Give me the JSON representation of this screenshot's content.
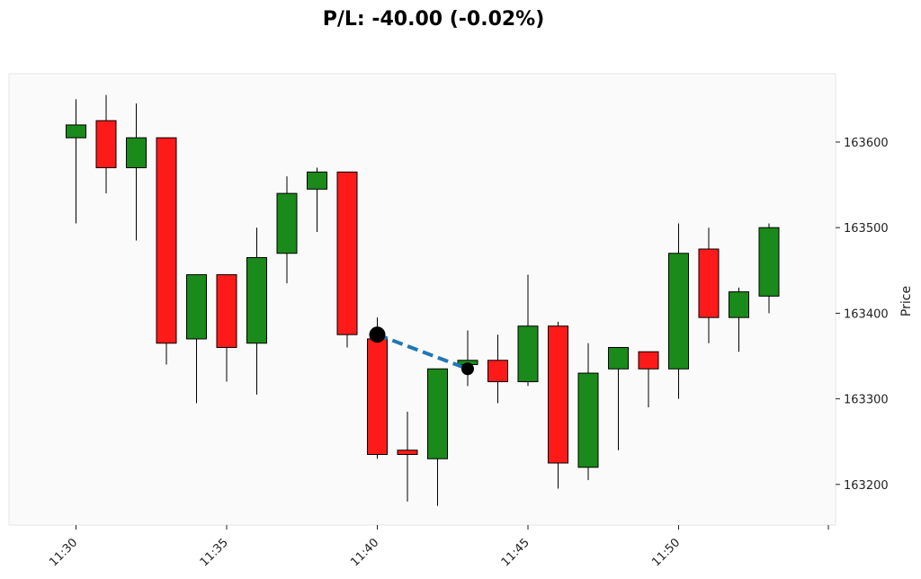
{
  "chart_data": {
    "type": "candlestick",
    "title": "P/L: -40.00 (-0.02%)",
    "xlabel": "",
    "ylabel": "Price",
    "x_ticks": [
      "11:30",
      "11:35",
      "11:40",
      "11:45",
      "11:50"
    ],
    "y_ticks": [
      163200,
      163300,
      163400,
      163500,
      163600
    ],
    "ylim": [
      163150,
      163680
    ],
    "grid": false,
    "colors": {
      "up": "#1a8a1a",
      "down": "#ff1a1a",
      "trade_line": "#1f77b4",
      "marker": "#000000",
      "background": "#fafafa"
    },
    "candles": [
      {
        "time": "11:30",
        "open": 163605,
        "high": 163650,
        "low": 163505,
        "close": 163620
      },
      {
        "time": "11:31",
        "open": 163625,
        "high": 163655,
        "low": 163540,
        "close": 163570
      },
      {
        "time": "11:32",
        "open": 163570,
        "high": 163645,
        "low": 163485,
        "close": 163605
      },
      {
        "time": "11:33",
        "open": 163605,
        "high": 163605,
        "low": 163340,
        "close": 163365
      },
      {
        "time": "11:34",
        "open": 163370,
        "high": 163445,
        "low": 163295,
        "close": 163445
      },
      {
        "time": "11:35",
        "open": 163445,
        "high": 163445,
        "low": 163320,
        "close": 163360
      },
      {
        "time": "11:36",
        "open": 163365,
        "high": 163500,
        "low": 163305,
        "close": 163465
      },
      {
        "time": "11:37",
        "open": 163470,
        "high": 163560,
        "low": 163435,
        "close": 163540
      },
      {
        "time": "11:38",
        "open": 163545,
        "high": 163570,
        "low": 163495,
        "close": 163565
      },
      {
        "time": "11:39",
        "open": 163565,
        "high": 163565,
        "low": 163360,
        "close": 163375
      },
      {
        "time": "11:40",
        "open": 163370,
        "high": 163395,
        "low": 163230,
        "close": 163235
      },
      {
        "time": "11:41",
        "open": 163240,
        "high": 163285,
        "low": 163180,
        "close": 163235
      },
      {
        "time": "11:42",
        "open": 163230,
        "high": 163335,
        "low": 163175,
        "close": 163335
      },
      {
        "time": "11:43",
        "open": 163340,
        "high": 163380,
        "low": 163315,
        "close": 163345
      },
      {
        "time": "11:44",
        "open": 163345,
        "high": 163375,
        "low": 163295,
        "close": 163320
      },
      {
        "time": "11:45",
        "open": 163320,
        "high": 163445,
        "low": 163315,
        "close": 163385
      },
      {
        "time": "11:46",
        "open": 163385,
        "high": 163390,
        "low": 163195,
        "close": 163225
      },
      {
        "time": "11:47",
        "open": 163220,
        "high": 163365,
        "low": 163205,
        "close": 163330
      },
      {
        "time": "11:48",
        "open": 163335,
        "high": 163360,
        "low": 163240,
        "close": 163360
      },
      {
        "time": "11:49",
        "open": 163355,
        "high": 163355,
        "low": 163290,
        "close": 163335
      },
      {
        "time": "11:50",
        "open": 163335,
        "high": 163505,
        "low": 163300,
        "close": 163470
      },
      {
        "time": "11:51",
        "open": 163475,
        "high": 163500,
        "low": 163365,
        "close": 163395
      },
      {
        "time": "11:52",
        "open": 163395,
        "high": 163430,
        "low": 163355,
        "close": 163425
      },
      {
        "time": "11:53",
        "open": 163420,
        "high": 163505,
        "low": 163400,
        "close": 163500
      }
    ],
    "trade": {
      "entry": {
        "time": "11:40",
        "price": 163375
      },
      "exit": {
        "time": "11:43",
        "price": 163335
      }
    }
  }
}
